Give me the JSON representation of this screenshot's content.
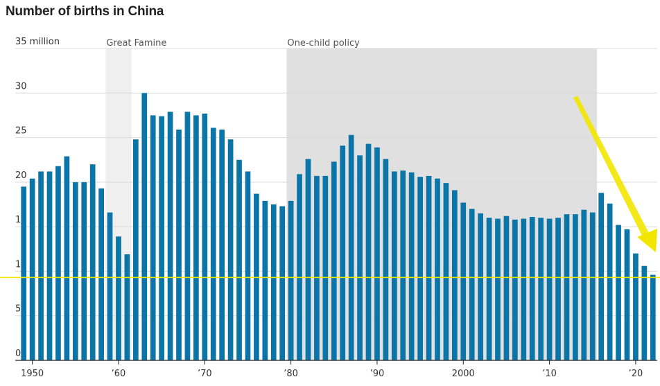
{
  "chart_data": {
    "type": "bar",
    "title": "Number of births in China",
    "ylim": [
      0,
      35
    ],
    "y_unit": "million",
    "y_ticks": [
      {
        "value": 35,
        "label": "35 million"
      },
      {
        "value": 30,
        "label": "30"
      },
      {
        "value": 25,
        "label": "25"
      },
      {
        "value": 20,
        "label": "20"
      },
      {
        "value": 15,
        "label": "15"
      },
      {
        "value": 10,
        "label": "10"
      },
      {
        "value": 5,
        "label": "5"
      },
      {
        "value": 0,
        "label": "0"
      }
    ],
    "x_ticks": [
      {
        "year": 1950,
        "label": "1950"
      },
      {
        "year": 1960,
        "label": "’60"
      },
      {
        "year": 1970,
        "label": "’70"
      },
      {
        "year": 1980,
        "label": "’80"
      },
      {
        "year": 1990,
        "label": "’90"
      },
      {
        "year": 2000,
        "label": "2000"
      },
      {
        "year": 2010,
        "label": "’10"
      },
      {
        "year": 2020,
        "label": "’20"
      }
    ],
    "grid": true,
    "periods": [
      {
        "label": "Great Famine",
        "start": 1958.5,
        "end": 1961.5,
        "color": "#efefef"
      },
      {
        "label": "One-child policy",
        "start": 1979.5,
        "end": 2015.5,
        "color": "#e0e0e0"
      }
    ],
    "bar_color": "#0b75a8",
    "x": [
      1949,
      1950,
      1951,
      1952,
      1953,
      1954,
      1955,
      1956,
      1957,
      1958,
      1959,
      1960,
      1961,
      1962,
      1963,
      1964,
      1965,
      1966,
      1967,
      1968,
      1969,
      1970,
      1971,
      1972,
      1973,
      1974,
      1975,
      1976,
      1977,
      1978,
      1979,
      1980,
      1981,
      1982,
      1983,
      1984,
      1985,
      1986,
      1987,
      1988,
      1989,
      1990,
      1991,
      1992,
      1993,
      1994,
      1995,
      1996,
      1997,
      1998,
      1999,
      2000,
      2001,
      2002,
      2003,
      2004,
      2005,
      2006,
      2007,
      2008,
      2009,
      2010,
      2011,
      2012,
      2013,
      2014,
      2015,
      2016,
      2017,
      2018,
      2019,
      2020,
      2021,
      2022
    ],
    "values": [
      19.5,
      20.4,
      21.2,
      21.2,
      21.8,
      22.9,
      20.0,
      20.0,
      22.0,
      19.3,
      16.6,
      13.9,
      11.9,
      24.8,
      30.0,
      27.5,
      27.4,
      27.9,
      25.9,
      27.9,
      27.5,
      27.7,
      26.1,
      25.9,
      24.8,
      22.5,
      21.2,
      18.7,
      17.9,
      17.5,
      17.3,
      17.9,
      20.9,
      22.6,
      20.7,
      20.7,
      22.3,
      24.1,
      25.3,
      23.0,
      24.3,
      23.9,
      22.6,
      21.2,
      21.3,
      21.1,
      20.6,
      20.7,
      20.4,
      19.9,
      19.1,
      17.7,
      17.0,
      16.5,
      16.0,
      15.9,
      16.2,
      15.8,
      15.9,
      16.1,
      16.0,
      15.9,
      16.0,
      16.4,
      16.4,
      16.9,
      16.6,
      18.8,
      17.6,
      15.2,
      14.7,
      12.0,
      10.6,
      9.6
    ]
  },
  "annotations": {
    "reference_line_value": 9.3,
    "reference_line_color": "#f2e600",
    "arrow_color": "#f2e600"
  }
}
